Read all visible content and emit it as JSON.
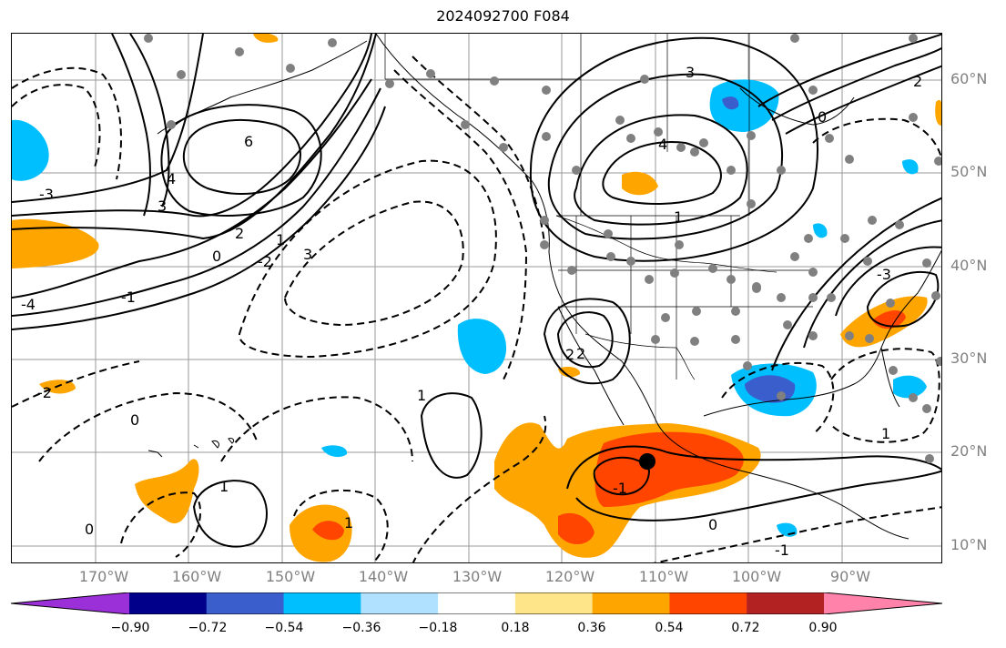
{
  "title": "2024092700 F084",
  "lat_labels": [
    "60°N",
    "50°N",
    "40°N",
    "30°N",
    "20°N",
    "10°N"
  ],
  "lon_labels": [
    "170°W",
    "160°W",
    "150°W",
    "140°W",
    "130°W",
    "120°W",
    "110°W",
    "100°W",
    "90°W"
  ],
  "colorbar": {
    "ticks": [
      "−0.90",
      "−0.72",
      "−0.54",
      "−0.36",
      "−0.18",
      "0.18",
      "0.36",
      "0.54",
      "0.72",
      "0.90"
    ],
    "colors": [
      "#9b30d9",
      "#00008b",
      "#3a5fcd",
      "#00bfff",
      "#b0e2ff",
      "#ffffff",
      "#ffe58a",
      "#ffa500",
      "#ff4500",
      "#b22222",
      "#ff82ab"
    ]
  },
  "contour_labels": [
    "6",
    "4",
    "3",
    "2",
    "1",
    "0",
    "-1",
    "-2",
    "-3",
    "-4",
    "2",
    "1",
    "0",
    "3",
    "4",
    "3",
    "2",
    "1",
    "0",
    "-1",
    "-2",
    "-3",
    "1",
    "0",
    "-1",
    "1",
    "2",
    "1",
    "0"
  ],
  "features": {
    "marker": "storm-center"
  }
}
